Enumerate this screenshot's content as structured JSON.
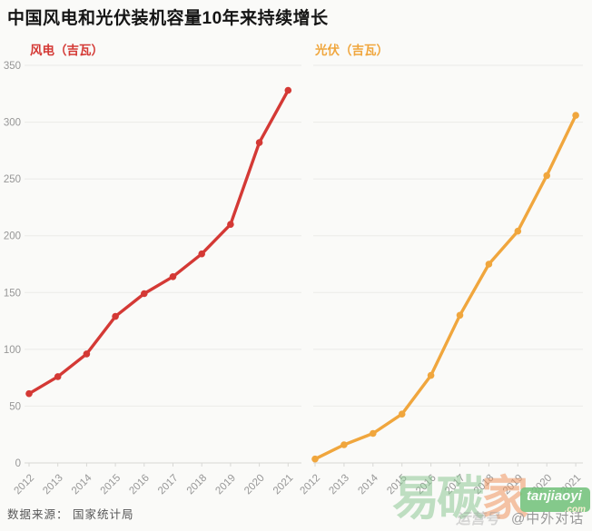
{
  "title": "中国风电和光伏装机容量10年来持续增长",
  "source": "数据来源：  国家统计局",
  "watermark": {
    "big_green_chars": "易碳",
    "big_orange_char": "家",
    "box_text": "tanjiaoyi",
    "box_sub": ".com",
    "credit_light": "运营号",
    "credit": "@中外对话"
  },
  "colors": {
    "wind": "#d43935",
    "solar": "#f0a63d",
    "background": "#fafaf8",
    "gridline": "#ebebe8",
    "tick": "#d8d8d5",
    "axis_text": "#979797",
    "title_text": "#151515",
    "source_text": "#575757",
    "watermark_green": "rgba(141,199,148,0.55)",
    "watermark_orange": "rgba(238,148,95,0.55)",
    "watermark_box_green": "rgba(111,191,120,0.85)",
    "credit_text": "#989898"
  },
  "chart_data": [
    {
      "type": "line",
      "series_id": "wind",
      "title": "风电（吉瓦）",
      "ylabel": "吉瓦",
      "x": [
        "2012",
        "2013",
        "2014",
        "2015",
        "2016",
        "2017",
        "2018",
        "2019",
        "2020",
        "2021"
      ],
      "values": [
        61,
        76,
        96,
        129,
        149,
        164,
        184,
        210,
        282,
        328
      ],
      "color": "#d43935",
      "ylim": [
        0,
        350
      ],
      "ytick_step": 50,
      "show_y_labels": true,
      "grid": true,
      "legend_position": "top-left"
    },
    {
      "type": "line",
      "series_id": "solar",
      "title": "光伏（吉瓦）",
      "ylabel": "吉瓦",
      "x": [
        "2012",
        "2013",
        "2014",
        "2015",
        "2016",
        "2017",
        "2018",
        "2019",
        "2020",
        "2021"
      ],
      "values": [
        3.4,
        16,
        26,
        43,
        77,
        130,
        175,
        204,
        253,
        306
      ],
      "color": "#f0a63d",
      "ylim": [
        0,
        350
      ],
      "ytick_step": 50,
      "show_y_labels": false,
      "grid": true,
      "legend_position": "top-left"
    }
  ]
}
